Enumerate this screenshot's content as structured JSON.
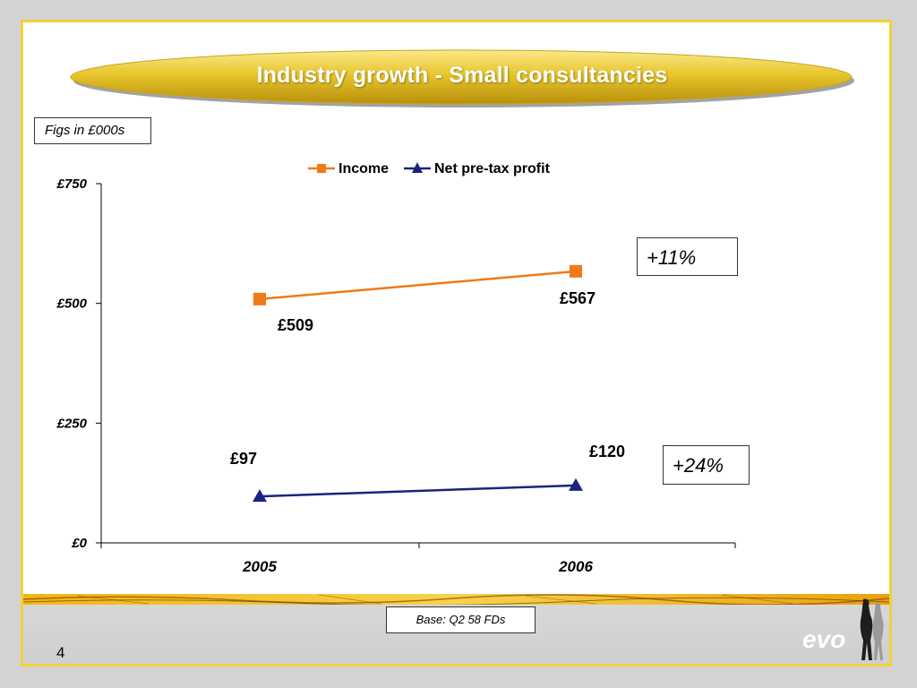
{
  "slide": {
    "title": "Industry growth - Small consultancies",
    "figs_note": "Figs in £000s",
    "base_note": "Base: Q2 58 FDs",
    "page_number": "4",
    "logo_text": "evo"
  },
  "colors": {
    "slide_border": "#f0d23a",
    "banner": "#e8c52c",
    "income": "#f07a18",
    "profit": "#1a237e"
  },
  "chart_data": {
    "type": "line",
    "categories": [
      "2005",
      "2006"
    ],
    "ylim": [
      0,
      750
    ],
    "yticks": [
      0,
      250,
      500,
      750
    ],
    "ytick_labels": [
      "£0",
      "£250",
      "£500",
      "£750"
    ],
    "legend_position": "top",
    "grid": false,
    "series": [
      {
        "name": "Income",
        "values": [
          509,
          567
        ],
        "labels": [
          "£509",
          "£567"
        ],
        "marker": "square",
        "color": "#f07a18",
        "change": "+11%"
      },
      {
        "name": "Net pre-tax profit",
        "values": [
          97,
          120
        ],
        "labels": [
          "£97",
          "£120"
        ],
        "marker": "triangle",
        "color": "#1a237e",
        "change": "+24%"
      }
    ]
  }
}
